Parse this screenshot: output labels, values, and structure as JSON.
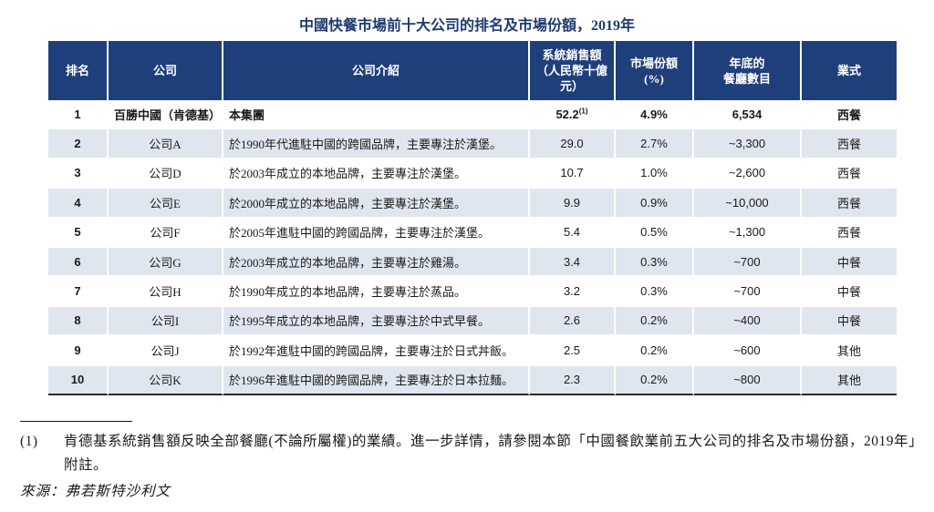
{
  "title": "中國快餐市場前十大公司的排名及市場份額，2019年",
  "table": {
    "headers": {
      "rank": "排名",
      "company": "公司",
      "intro": "公司介紹",
      "sales_l1": "系統銷售額",
      "sales_l2": "（人民幣十億元）",
      "share_l1": "市場份額",
      "share_l2": "(%)",
      "stores_l1": "年底的",
      "stores_l2": "餐廳數目",
      "format": "業式"
    },
    "rows": [
      {
        "rank": "1",
        "company": "百勝中國（肯德基）",
        "intro": "本集團",
        "sales": "52.2",
        "sales_note": "(1)",
        "share": "4.9%",
        "stores": "6,534",
        "format": "西餐"
      },
      {
        "rank": "2",
        "company": "公司A",
        "intro": "於1990年代進駐中國的跨國品牌，主要專注於漢堡。",
        "sales": "29.0",
        "share": "2.7%",
        "stores": "~3,300",
        "format": "西餐"
      },
      {
        "rank": "3",
        "company": "公司D",
        "intro": "於2003年成立的本地品牌，主要專注於漢堡。",
        "sales": "10.7",
        "share": "1.0%",
        "stores": "~2,600",
        "format": "西餐"
      },
      {
        "rank": "4",
        "company": "公司E",
        "intro": "於2000年成立的本地品牌，主要專注於漢堡。",
        "sales": "9.9",
        "share": "0.9%",
        "stores": "~10,000",
        "format": "西餐"
      },
      {
        "rank": "5",
        "company": "公司F",
        "intro": "於2005年進駐中國的跨國品牌，主要專注於漢堡。",
        "sales": "5.4",
        "share": "0.5%",
        "stores": "~1,300",
        "format": "西餐"
      },
      {
        "rank": "6",
        "company": "公司G",
        "intro": "於2003年成立的本地品牌，主要專注於雞湯。",
        "sales": "3.4",
        "share": "0.3%",
        "stores": "~700",
        "format": "中餐"
      },
      {
        "rank": "7",
        "company": "公司H",
        "intro": "於1990年成立的本地品牌，主要專注於蒸品。",
        "sales": "3.2",
        "share": "0.3%",
        "stores": "~700",
        "format": "中餐"
      },
      {
        "rank": "8",
        "company": "公司I",
        "intro": "於1995年成立的本地品牌，主要專注於中式早餐。",
        "sales": "2.6",
        "share": "0.2%",
        "stores": "~400",
        "format": "中餐"
      },
      {
        "rank": "9",
        "company": "公司J",
        "intro": "於1992年進駐中國的跨國品牌，主要專注於日式丼飯。",
        "sales": "2.5",
        "share": "0.2%",
        "stores": "~600",
        "format": "其他"
      },
      {
        "rank": "10",
        "company": "公司K",
        "intro": "於1996年進駐中國的跨國品牌，主要專注於日本拉麵。",
        "sales": "2.3",
        "share": "0.2%",
        "stores": "~800",
        "format": "其他"
      }
    ]
  },
  "footnote": {
    "number": "(1)",
    "text": "肯德基系統銷售額反映全部餐廳(不論所屬權)的業績。進一步詳情，請參閱本節「中國餐飲業前五大公司的排名及市場份額，2019年」附註。"
  },
  "source": "來源：弗若斯特沙利文",
  "colors": {
    "header_bg": "#1f3f7a",
    "title": "#1f3b6e",
    "stripe": "#dfe6ef"
  }
}
